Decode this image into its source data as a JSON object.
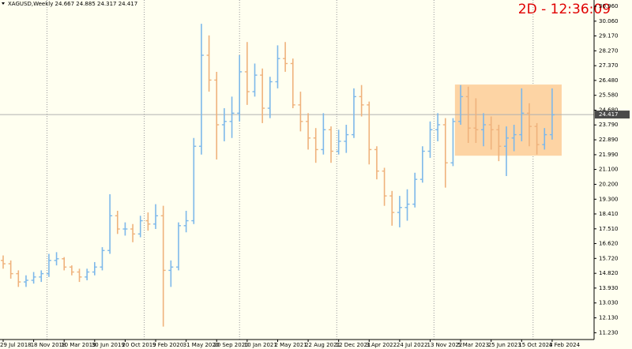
{
  "chart_data": {
    "type": "ohlc",
    "header": "XAGUSD,Weekly  24.667 24.885 24.317 24.417",
    "timer": "2D - 12:36:09",
    "x": [
      0,
      4,
      8,
      12,
      16,
      20,
      24,
      28,
      32,
      36,
      40,
      44,
      48,
      52,
      56,
      60,
      64,
      68,
      72,
      76,
      80,
      84,
      88,
      92,
      96,
      100,
      104,
      108,
      112,
      116,
      120,
      124,
      128,
      132,
      136,
      140,
      144,
      148,
      152,
      156,
      160,
      164,
      168,
      172,
      176,
      180,
      184,
      188,
      192,
      196,
      200,
      204,
      208,
      212,
      216,
      220,
      224,
      228,
      232,
      236,
      240,
      244,
      248,
      252,
      256,
      260,
      264,
      268,
      272,
      276,
      280,
      284,
      288
    ],
    "open": [
      15.6,
      15.4,
      14.8,
      14.3,
      14.4,
      14.6,
      14.8,
      15.6,
      15.7,
      15.2,
      14.9,
      14.6,
      14.9,
      15.2,
      16.2,
      18.3,
      17.5,
      17.5,
      17.2,
      18.0,
      17.8,
      18.3,
      15.0,
      15.2,
      17.7,
      18.0,
      22.5,
      28.0,
      26.5,
      23.8,
      24.0,
      24.5,
      27.0,
      25.8,
      26.8,
      24.8,
      26.4,
      27.8,
      27.5,
      25.0,
      24.0,
      23.0,
      22.3,
      23.5,
      22.2,
      22.8,
      23.2,
      25.5,
      25.0,
      22.3,
      21.0,
      19.5,
      18.5,
      18.8,
      19.0,
      20.5,
      22.2,
      23.5,
      23.8,
      21.5,
      24.0,
      25.5,
      23.6,
      23.5,
      23.8,
      23.5,
      22.5,
      23.0,
      23.2,
      24.5,
      23.7,
      22.6,
      23.2
    ],
    "high": [
      15.9,
      15.6,
      15.0,
      14.7,
      14.9,
      15.0,
      16.0,
      16.1,
      15.8,
      15.3,
      15.1,
      15.1,
      15.5,
      16.4,
      19.6,
      18.6,
      17.9,
      17.8,
      18.3,
      18.5,
      19.0,
      18.9,
      15.6,
      17.9,
      18.6,
      23.0,
      29.9,
      29.2,
      27.0,
      24.8,
      25.5,
      28.0,
      28.8,
      27.5,
      27.2,
      26.7,
      28.6,
      28.8,
      27.8,
      25.8,
      24.5,
      23.6,
      24.5,
      23.7,
      23.5,
      23.8,
      26.0,
      26.2,
      25.2,
      22.5,
      21.2,
      19.8,
      19.5,
      19.9,
      20.9,
      22.5,
      24.0,
      24.5,
      24.2,
      24.2,
      26.2,
      26.1,
      25.4,
      24.5,
      24.3,
      23.8,
      23.7,
      23.8,
      26.0,
      25.1,
      23.9,
      23.6,
      26.0
    ],
    "low": [
      15.1,
      14.5,
      14.0,
      14.0,
      14.2,
      14.3,
      14.6,
      15.3,
      15.0,
      14.7,
      14.3,
      14.4,
      14.7,
      15.0,
      16.0,
      17.2,
      17.1,
      16.7,
      17.0,
      17.4,
      17.5,
      11.6,
      14.0,
      15.0,
      17.3,
      17.8,
      22.0,
      25.8,
      21.7,
      22.8,
      23.0,
      24.0,
      25.0,
      25.5,
      23.9,
      24.2,
      26.0,
      27.0,
      24.8,
      23.4,
      22.3,
      21.5,
      22.0,
      21.5,
      22.0,
      22.1,
      23.0,
      24.3,
      21.4,
      20.5,
      18.9,
      17.7,
      17.6,
      18.0,
      18.8,
      20.3,
      21.8,
      22.8,
      20.0,
      21.3,
      23.8,
      22.7,
      22.7,
      22.5,
      22.3,
      21.6,
      20.7,
      22.2,
      22.8,
      22.5,
      22.0,
      22.3,
      22.9
    ],
    "close": [
      15.4,
      14.8,
      14.3,
      14.4,
      14.6,
      14.8,
      15.6,
      15.7,
      15.2,
      14.9,
      14.6,
      14.9,
      15.2,
      16.2,
      18.3,
      17.5,
      17.5,
      17.2,
      18.0,
      17.8,
      18.3,
      15.0,
      15.2,
      17.7,
      18.0,
      22.5,
      28.0,
      26.5,
      23.8,
      24.0,
      24.5,
      27.0,
      25.8,
      26.8,
      24.8,
      26.4,
      27.8,
      27.5,
      25.0,
      24.0,
      23.0,
      22.3,
      23.5,
      22.2,
      22.8,
      23.2,
      25.5,
      25.0,
      22.3,
      21.0,
      19.5,
      18.5,
      18.8,
      19.0,
      20.5,
      22.2,
      23.5,
      23.8,
      21.5,
      24.0,
      25.5,
      23.6,
      23.5,
      23.8,
      23.5,
      22.5,
      23.0,
      23.2,
      24.5,
      23.7,
      22.6,
      23.2,
      24.4
    ],
    "up_color": "#7db8ea",
    "down_color": "#efb27c",
    "xlim": [
      0,
      310
    ],
    "xticks": [
      {
        "value": 0,
        "label": "29 Jul 2018"
      },
      {
        "value": 16,
        "label": "18 Nov 2018"
      },
      {
        "value": 32,
        "label": "10 Mar 2019"
      },
      {
        "value": 48,
        "label": "30 Jun 2019"
      },
      {
        "value": 64,
        "label": "20 Oct 2019"
      },
      {
        "value": 80,
        "label": "9 Feb 2020"
      },
      {
        "value": 96,
        "label": "31 May 2020"
      },
      {
        "value": 112,
        "label": "20 Sep 2020"
      },
      {
        "value": 128,
        "label": "10 Jan 2021"
      },
      {
        "value": 144,
        "label": "2 May 2021"
      },
      {
        "value": 160,
        "label": "22 Aug 2021"
      },
      {
        "value": 176,
        "label": "12 Dec 2021"
      },
      {
        "value": 192,
        "label": "3 Apr 2022"
      },
      {
        "value": 208,
        "label": "24 Jul 2022"
      },
      {
        "value": 224,
        "label": "13 Nov 2022"
      },
      {
        "value": 240,
        "label": "5 Mar 2023"
      },
      {
        "value": 256,
        "label": "25 Jun 2023"
      },
      {
        "value": 272,
        "label": "15 Oct 2023"
      },
      {
        "value": 288,
        "label": "4 Feb 2024"
      }
    ],
    "xgrid": [
      23,
      74,
      124,
      175,
      226,
      278
    ],
    "ylim": [
      10.82,
      31.34
    ],
    "yticks": [
      {
        "value": 30.96,
        "label": "30.960"
      },
      {
        "value": 30.06,
        "label": "30.060"
      },
      {
        "value": 29.17,
        "label": "29.170"
      },
      {
        "value": 28.27,
        "label": "28.270"
      },
      {
        "value": 27.37,
        "label": "27.370"
      },
      {
        "value": 26.48,
        "label": "26.480"
      },
      {
        "value": 25.58,
        "label": "25.580"
      },
      {
        "value": 24.68,
        "label": "24.680"
      },
      {
        "value": 23.79,
        "label": "23.790"
      },
      {
        "value": 22.89,
        "label": "22.890"
      },
      {
        "value": 21.99,
        "label": "21.990"
      },
      {
        "value": 21.1,
        "label": "21.100"
      },
      {
        "value": 20.2,
        "label": "20.200"
      },
      {
        "value": 19.3,
        "label": "19.300"
      },
      {
        "value": 18.41,
        "label": "18.410"
      },
      {
        "value": 17.51,
        "label": "17.510"
      },
      {
        "value": 16.62,
        "label": "16.620"
      },
      {
        "value": 15.72,
        "label": "15.720"
      },
      {
        "value": 14.82,
        "label": "14.820"
      },
      {
        "value": 13.93,
        "label": "13.930"
      },
      {
        "value": 13.03,
        "label": "13.030"
      },
      {
        "value": 12.13,
        "label": "12.130"
      },
      {
        "value": 11.23,
        "label": "11.230"
      }
    ],
    "last_price": 24.417,
    "rectangle": {
      "x": [
        237,
        293
      ],
      "y": [
        21.93,
        26.23
      ],
      "color": "#fdd4a4"
    }
  }
}
